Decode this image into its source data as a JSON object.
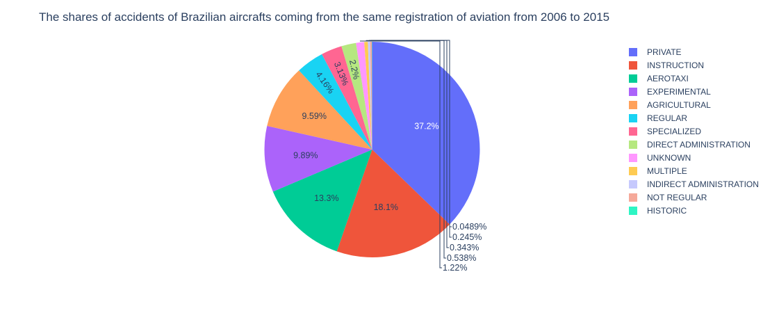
{
  "chart_data": {
    "type": "pie",
    "title": "The shares of accidents of Brazilian aircrafts coming from the same registration of aviation from 2006 to 2015",
    "direction": "clockwise",
    "legend_position": "right",
    "slices": [
      {
        "label": "PRIVATE",
        "percent": 37.2,
        "text": "37.2%",
        "color": "#636efa",
        "text_color": "#ffffff"
      },
      {
        "label": "INSTRUCTION",
        "percent": 18.1,
        "text": "18.1%",
        "color": "#ef553b",
        "text_color": "#2a3f5f"
      },
      {
        "label": "AEROTAXI",
        "percent": 13.3,
        "text": "13.3%",
        "color": "#00cc96",
        "text_color": "#2a3f5f"
      },
      {
        "label": "EXPERIMENTAL",
        "percent": 9.89,
        "text": "9.89%",
        "color": "#ab63fa",
        "text_color": "#2a3f5f"
      },
      {
        "label": "AGRICULTURAL",
        "percent": 9.59,
        "text": "9.59%",
        "color": "#ffa15a",
        "text_color": "#2a3f5f"
      },
      {
        "label": "REGULAR",
        "percent": 4.16,
        "text": "4.16%",
        "color": "#19d3f3",
        "text_color": "#2a3f5f"
      },
      {
        "label": "SPECIALIZED",
        "percent": 3.13,
        "text": "3.13%",
        "color": "#ff6692",
        "text_color": "#2a3f5f"
      },
      {
        "label": "DIRECT ADMINISTRATION",
        "percent": 2.2,
        "text": "2.2%",
        "color": "#b6e880",
        "text_color": "#2a3f5f"
      },
      {
        "label": "UNKNOWN",
        "percent": 1.22,
        "text": "1.22%",
        "color": "#ff97ff",
        "text_color": "#2a3f5f"
      },
      {
        "label": "MULTIPLE",
        "percent": 0.538,
        "text": "0.538%",
        "color": "#fecb52",
        "text_color": "#2a3f5f"
      },
      {
        "label": "INDIRECT ADMINISTRATION",
        "percent": 0.343,
        "text": "0.343%",
        "color": "#c6c9fd",
        "text_color": "#2a3f5f"
      },
      {
        "label": "NOT REGULAR",
        "percent": 0.245,
        "text": "0.245%",
        "color": "#f5a99a",
        "text_color": "#2a3f5f"
      },
      {
        "label": "HISTORIC",
        "percent": 0.0489,
        "text": "0.0489%",
        "color": "#2ef5c4",
        "text_color": "#2a3f5f"
      }
    ]
  }
}
